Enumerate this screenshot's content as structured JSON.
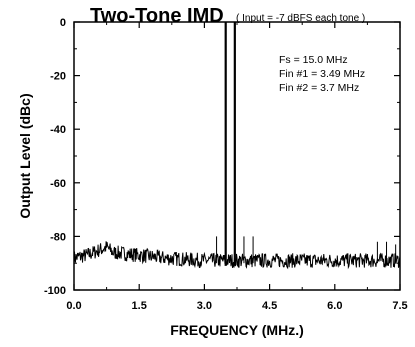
{
  "chart_data": {
    "type": "line",
    "title": "Two-Tone IMD",
    "subtitle": "( Input = -7 dBFS each tone )",
    "xlabel": "FREQUENCY  (MHz.)",
    "ylabel": "Output Level (dBc)",
    "xlim": [
      0.0,
      7.5
    ],
    "ylim": [
      -100,
      0
    ],
    "x_ticks": [
      "0.0",
      "1.5",
      "3.0",
      "4.5",
      "6.0",
      "7.5"
    ],
    "y_ticks": [
      "0",
      "-20",
      "-40",
      "-60",
      "-80",
      "-100"
    ],
    "grid": false,
    "annotations": [
      "Fs = 15.0 MHz",
      "Fin #1 = 3.49 MHz",
      "Fin #2 = 3.7 MHz"
    ],
    "series": [
      {
        "noise_floor": [
          [
            0.0,
            -88
          ],
          [
            0.3,
            -87
          ],
          [
            0.6,
            -85
          ],
          [
            0.75,
            -84
          ],
          [
            0.9,
            -86
          ],
          [
            1.2,
            -86.5
          ],
          [
            1.5,
            -87
          ],
          [
            2.0,
            -88
          ],
          [
            2.5,
            -88.5
          ],
          [
            3.0,
            -89
          ],
          [
            3.5,
            -89
          ],
          [
            4.0,
            -89
          ],
          [
            4.5,
            -89
          ],
          [
            5.0,
            -89
          ],
          [
            5.5,
            -89
          ],
          [
            6.0,
            -89
          ],
          [
            6.5,
            -89
          ],
          [
            7.0,
            -89
          ],
          [
            7.5,
            -89
          ]
        ],
        "tones": [
          {
            "x": 3.49,
            "y": 0
          },
          {
            "x": 3.7,
            "y": 0
          }
        ],
        "spurs": [
          {
            "x": 3.28,
            "y": -80
          },
          {
            "x": 3.91,
            "y": -80
          },
          {
            "x": 4.12,
            "y": -80
          },
          {
            "x": 6.98,
            "y": -82
          },
          {
            "x": 7.19,
            "y": -82
          },
          {
            "x": 7.4,
            "y": -83
          }
        ]
      }
    ]
  }
}
